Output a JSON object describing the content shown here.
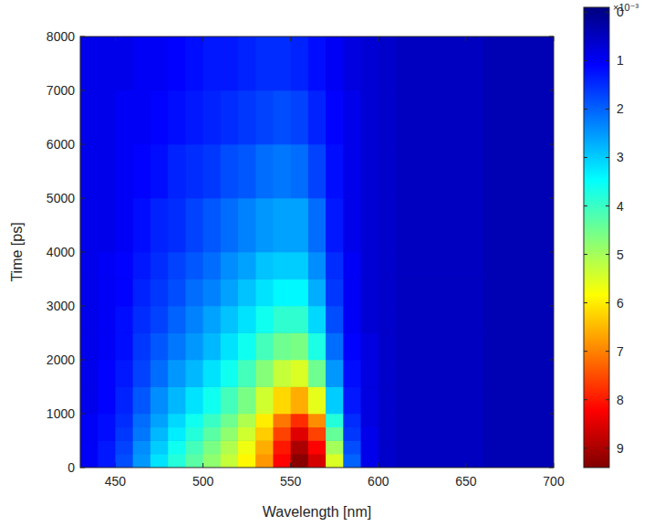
{
  "chart_data": {
    "type": "heatmap",
    "x_label": "Wavelength [nm]",
    "y_label": "Time [ps]",
    "xlim": [
      430,
      700
    ],
    "ylim": [
      0,
      8000
    ],
    "xticks": [
      450,
      500,
      550,
      600,
      650,
      700
    ],
    "yticks": [
      0,
      1000,
      2000,
      3000,
      4000,
      5000,
      6000,
      7000,
      8000
    ],
    "x_bins": [
      430,
      440,
      450,
      460,
      470,
      480,
      490,
      500,
      510,
      520,
      530,
      540,
      550,
      560,
      570,
      580,
      590,
      600,
      610,
      620,
      630,
      640,
      650,
      660,
      670,
      680,
      690,
      700
    ],
    "y_bins": [
      0,
      250,
      500,
      750,
      1000,
      1500,
      2000,
      2500,
      3000,
      3500,
      4000,
      5000,
      6000,
      7000,
      8000
    ],
    "cells": [
      [
        1.0,
        1.3,
        1.8,
        2.5,
        3.2,
        3.8,
        4.3,
        4.8,
        5.3,
        5.9,
        6.8,
        8.2,
        9.3,
        8.6,
        5.5,
        2.0,
        0.9,
        0.6,
        0.5,
        0.5,
        0.5,
        0.5,
        0.5,
        0.4,
        0.4,
        0.4,
        0.4
      ],
      [
        1.0,
        1.3,
        1.7,
        2.4,
        3.0,
        3.6,
        4.1,
        4.6,
        5.1,
        5.7,
        6.6,
        8.0,
        9.0,
        8.2,
        5.0,
        1.8,
        0.9,
        0.6,
        0.5,
        0.5,
        0.5,
        0.5,
        0.5,
        0.4,
        0.4,
        0.4,
        0.4
      ],
      [
        1.0,
        1.2,
        1.6,
        2.2,
        2.8,
        3.3,
        3.8,
        4.3,
        4.8,
        5.4,
        6.3,
        7.6,
        8.5,
        7.6,
        4.4,
        1.6,
        0.9,
        0.6,
        0.5,
        0.5,
        0.5,
        0.5,
        0.5,
        0.4,
        0.4,
        0.4,
        0.4
      ],
      [
        1.0,
        1.2,
        1.5,
        2.1,
        2.6,
        3.1,
        3.6,
        4.0,
        4.5,
        5.1,
        6.0,
        7.1,
        7.8,
        6.9,
        3.8,
        1.5,
        0.8,
        0.6,
        0.5,
        0.5,
        0.5,
        0.5,
        0.5,
        0.4,
        0.4,
        0.4,
        0.4
      ],
      [
        0.9,
        1.1,
        1.4,
        1.9,
        2.4,
        2.8,
        3.2,
        3.6,
        4.1,
        4.6,
        5.4,
        6.2,
        6.6,
        5.6,
        3.0,
        1.3,
        0.8,
        0.6,
        0.5,
        0.5,
        0.5,
        0.5,
        0.5,
        0.4,
        0.4,
        0.4,
        0.4
      ],
      [
        0.9,
        1.1,
        1.3,
        1.7,
        2.1,
        2.5,
        2.8,
        3.2,
        3.6,
        4.1,
        4.7,
        5.3,
        5.5,
        4.5,
        2.5,
        1.2,
        0.8,
        0.6,
        0.5,
        0.5,
        0.5,
        0.5,
        0.5,
        0.4,
        0.4,
        0.4,
        0.4
      ],
      [
        0.9,
        1.0,
        1.2,
        1.6,
        1.9,
        2.2,
        2.5,
        2.8,
        3.2,
        3.6,
        4.1,
        4.5,
        4.6,
        3.7,
        2.1,
        1.1,
        0.8,
        0.6,
        0.5,
        0.5,
        0.5,
        0.5,
        0.5,
        0.4,
        0.4,
        0.4,
        0.4
      ],
      [
        0.9,
        1.0,
        1.2,
        1.5,
        1.7,
        2.0,
        2.3,
        2.6,
        2.9,
        3.2,
        3.6,
        3.9,
        3.9,
        3.1,
        1.8,
        1.0,
        0.7,
        0.6,
        0.5,
        0.5,
        0.5,
        0.5,
        0.5,
        0.4,
        0.4,
        0.4,
        0.4
      ],
      [
        0.9,
        1.0,
        1.1,
        1.4,
        1.6,
        1.8,
        2.1,
        2.3,
        2.6,
        2.9,
        3.2,
        3.4,
        3.4,
        2.7,
        1.6,
        1.0,
        0.7,
        0.6,
        0.5,
        0.5,
        0.5,
        0.5,
        0.5,
        0.4,
        0.4,
        0.4,
        0.4
      ],
      [
        0.9,
        1.0,
        1.1,
        1.3,
        1.5,
        1.7,
        1.9,
        2.1,
        2.4,
        2.6,
        2.9,
        3.0,
        3.0,
        2.4,
        1.5,
        1.0,
        0.7,
        0.6,
        0.5,
        0.5,
        0.5,
        0.5,
        0.5,
        0.4,
        0.4,
        0.4,
        0.4
      ],
      [
        0.9,
        0.9,
        1.0,
        1.2,
        1.4,
        1.5,
        1.7,
        1.9,
        2.1,
        2.3,
        2.5,
        2.6,
        2.6,
        2.1,
        1.3,
        0.9,
        0.7,
        0.6,
        0.5,
        0.5,
        0.5,
        0.5,
        0.5,
        0.4,
        0.4,
        0.4,
        0.4
      ],
      [
        0.9,
        0.9,
        1.0,
        1.1,
        1.2,
        1.4,
        1.5,
        1.6,
        1.8,
        1.9,
        2.1,
        2.2,
        2.1,
        1.7,
        1.2,
        0.9,
        0.7,
        0.6,
        0.5,
        0.5,
        0.5,
        0.5,
        0.5,
        0.4,
        0.4,
        0.4,
        0.4
      ],
      [
        0.9,
        0.9,
        1.0,
        1.0,
        1.1,
        1.2,
        1.3,
        1.4,
        1.5,
        1.6,
        1.7,
        1.8,
        1.7,
        1.4,
        1.1,
        0.9,
        0.7,
        0.6,
        0.5,
        0.5,
        0.5,
        0.5,
        0.5,
        0.4,
        0.4,
        0.4,
        0.4
      ],
      [
        0.9,
        0.9,
        0.9,
        1.0,
        1.0,
        1.1,
        1.2,
        1.3,
        1.3,
        1.4,
        1.5,
        1.5,
        1.4,
        1.2,
        1.0,
        0.8,
        0.7,
        0.6,
        0.5,
        0.5,
        0.5,
        0.5,
        0.5,
        0.4,
        0.4,
        0.4,
        0.4
      ]
    ],
    "colorbar": {
      "range": [
        -0.1,
        9.4
      ],
      "ticks": [
        0,
        1,
        2,
        3,
        4,
        5,
        6,
        7,
        8,
        9
      ],
      "label": "×10⁻³"
    }
  }
}
